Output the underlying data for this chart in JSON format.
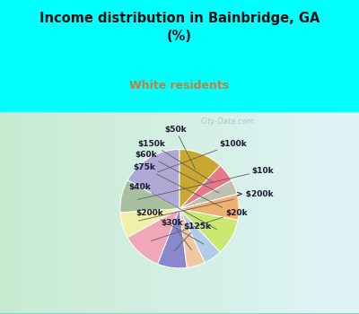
{
  "title": "Income distribution in Bainbridge, GA\n(%)",
  "subtitle": "White residents",
  "bg_cyan": "#00FFFF",
  "labels": [
    "$100k",
    "$10k",
    "> $200k",
    "$20k",
    "$125k",
    "$30k",
    "$200k",
    "$40k",
    "$75k",
    "$60k",
    "$150k",
    "$50k"
  ],
  "values": [
    17,
    9,
    7,
    11,
    8,
    5,
    5,
    10,
    7,
    4,
    5,
    12
  ],
  "colors": [
    "#b0a8d5",
    "#a8c0a0",
    "#f0f0a8",
    "#f0a8b8",
    "#8888cc",
    "#f0c8a0",
    "#b0cce8",
    "#c8e870",
    "#f0b070",
    "#c0c0b0",
    "#e87888",
    "#c8a830"
  ],
  "label_color": "#1a1a2e",
  "subtitle_color": "#c08040",
  "startangle": 90,
  "watermark": "City-Data.com"
}
